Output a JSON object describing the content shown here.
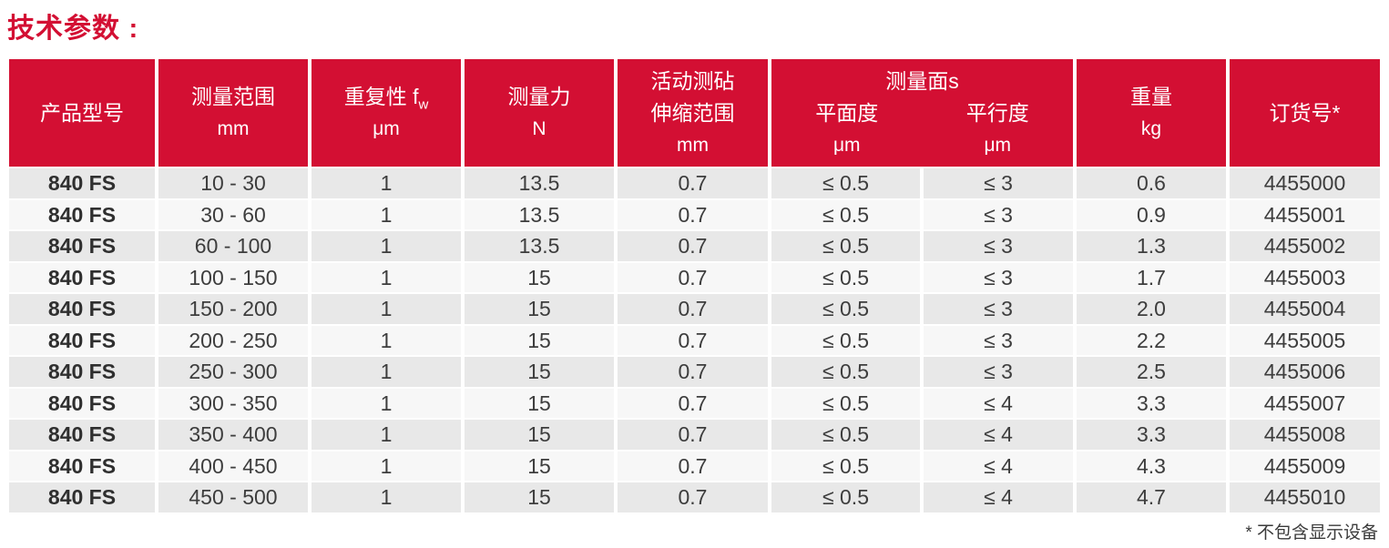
{
  "page": {
    "title": "技术参数 :",
    "footnote": "* 不包含显示设备"
  },
  "colors": {
    "header_red": "#d30f33",
    "title_red": "#d30f33",
    "row_odd_bg": "#e8e8e8",
    "row_even_bg": "#f7f7f7",
    "data_text": "#3d3d3d"
  },
  "table": {
    "headers": {
      "product_model": {
        "label": "产品型号"
      },
      "measuring_range": {
        "label": "测量范围",
        "unit": "mm"
      },
      "repeatability": {
        "label": "重复性 f",
        "label_sub": "w",
        "unit": "μm"
      },
      "measuring_force": {
        "label": "测量力",
        "unit": "N"
      },
      "anvil_range": {
        "label_line1": "活动测砧",
        "label_line2": "伸缩范围",
        "unit": "mm"
      },
      "measuring_faces": {
        "group_label": "测量面s",
        "flatness_label": "平面度",
        "flatness_unit": "μm",
        "parallelism_label": "平行度",
        "parallelism_unit": "μm"
      },
      "weight": {
        "label": "重量",
        "unit": "kg"
      },
      "order_number": {
        "label": "订货号*"
      }
    },
    "rows": [
      {
        "model": "840 FS",
        "range": "10 - 30",
        "repeatability": "1",
        "force": "13.5",
        "anvil": "0.7",
        "flatness": "≤ 0.5",
        "parallelism": "≤ 3",
        "weight": "0.6",
        "order": "4455000"
      },
      {
        "model": "840 FS",
        "range": "30 - 60",
        "repeatability": "1",
        "force": "13.5",
        "anvil": "0.7",
        "flatness": "≤ 0.5",
        "parallelism": "≤ 3",
        "weight": "0.9",
        "order": "4455001"
      },
      {
        "model": "840 FS",
        "range": "60 - 100",
        "repeatability": "1",
        "force": "13.5",
        "anvil": "0.7",
        "flatness": "≤ 0.5",
        "parallelism": "≤ 3",
        "weight": "1.3",
        "order": "4455002"
      },
      {
        "model": "840 FS",
        "range": "100 - 150",
        "repeatability": "1",
        "force": "15",
        "anvil": "0.7",
        "flatness": "≤ 0.5",
        "parallelism": "≤ 3",
        "weight": "1.7",
        "order": "4455003"
      },
      {
        "model": "840 FS",
        "range": "150 - 200",
        "repeatability": "1",
        "force": "15",
        "anvil": "0.7",
        "flatness": "≤ 0.5",
        "parallelism": "≤ 3",
        "weight": "2.0",
        "order": "4455004"
      },
      {
        "model": "840 FS",
        "range": "200 - 250",
        "repeatability": "1",
        "force": "15",
        "anvil": "0.7",
        "flatness": "≤ 0.5",
        "parallelism": "≤ 3",
        "weight": "2.2",
        "order": "4455005"
      },
      {
        "model": "840 FS",
        "range": "250 - 300",
        "repeatability": "1",
        "force": "15",
        "anvil": "0.7",
        "flatness": "≤ 0.5",
        "parallelism": "≤ 3",
        "weight": "2.5",
        "order": "4455006"
      },
      {
        "model": "840 FS",
        "range": "300 - 350",
        "repeatability": "1",
        "force": "15",
        "anvil": "0.7",
        "flatness": "≤ 0.5",
        "parallelism": "≤ 4",
        "weight": "3.3",
        "order": "4455007"
      },
      {
        "model": "840 FS",
        "range": "350 - 400",
        "repeatability": "1",
        "force": "15",
        "anvil": "0.7",
        "flatness": "≤ 0.5",
        "parallelism": "≤ 4",
        "weight": "3.3",
        "order": "4455008"
      },
      {
        "model": "840 FS",
        "range": "400 - 450",
        "repeatability": "1",
        "force": "15",
        "anvil": "0.7",
        "flatness": "≤ 0.5",
        "parallelism": "≤ 4",
        "weight": "4.3",
        "order": "4455009"
      },
      {
        "model": "840 FS",
        "range": "450 - 500",
        "repeatability": "1",
        "force": "15",
        "anvil": "0.7",
        "flatness": "≤ 0.5",
        "parallelism": "≤ 4",
        "weight": "4.7",
        "order": "4455010"
      }
    ]
  }
}
